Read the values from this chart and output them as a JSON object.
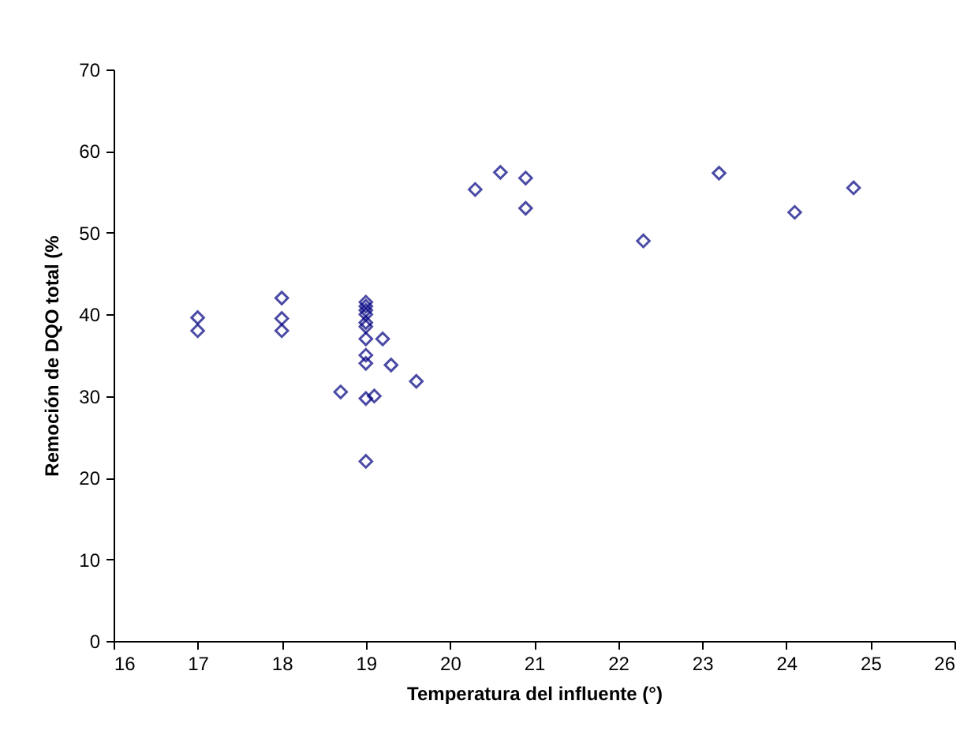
{
  "chart_data": {
    "type": "scatter",
    "xlabel": "Temperatura del influente (°)",
    "ylabel": "Remoción de DQO total (%",
    "xlim": [
      16,
      26
    ],
    "xticks": [
      16,
      17,
      18,
      19,
      20,
      21,
      22,
      23,
      24,
      25,
      26
    ],
    "ylim": [
      0,
      70
    ],
    "yticks": [
      0,
      10,
      20,
      30,
      40,
      50,
      60,
      70
    ],
    "grid": false,
    "legend": false,
    "marker": "diamond",
    "series": [
      {
        "color": "#000080",
        "x": [
          17,
          17,
          18,
          18,
          18,
          19,
          19,
          19,
          19,
          19,
          19,
          19,
          19,
          19,
          19,
          19,
          18.7,
          19.1,
          19.2,
          19.3,
          19.6,
          20.3,
          20.6,
          20.9,
          20.9,
          22.3,
          23.2,
          24.1,
          24.8
        ],
        "values": [
          39.6,
          38,
          42,
          39.5,
          38,
          41.5,
          41,
          40.5,
          40,
          39,
          38.5,
          37,
          35,
          34,
          29.7,
          22,
          30.5,
          30,
          37,
          33.8,
          31.8,
          55.3,
          57.4,
          56.7,
          53,
          49,
          57.3,
          52.5,
          55.5
        ]
      }
    ]
  }
}
